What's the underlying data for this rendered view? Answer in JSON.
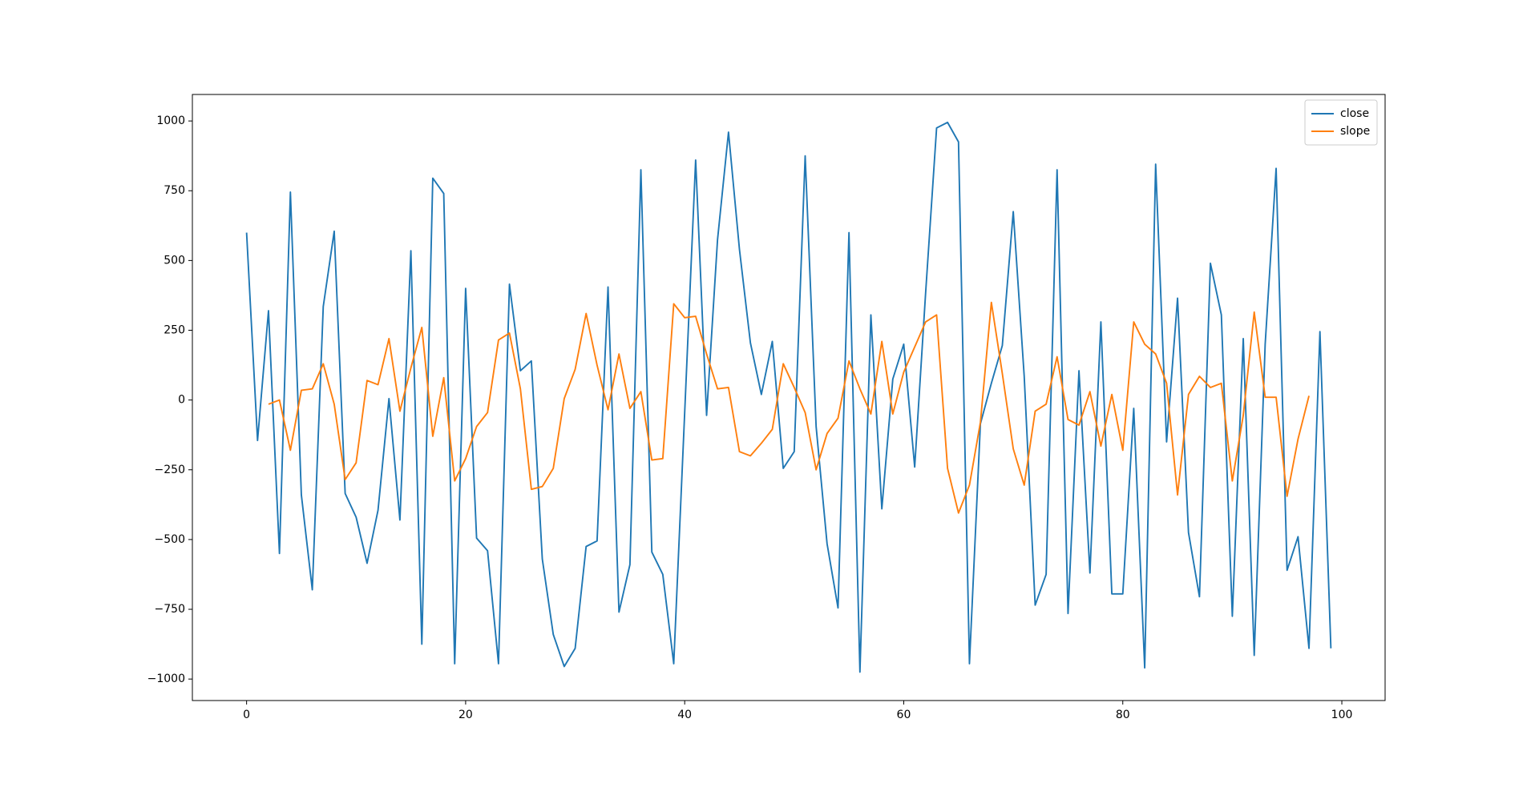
{
  "chart_data": {
    "type": "line",
    "x": [
      0,
      1,
      2,
      3,
      4,
      5,
      6,
      7,
      8,
      9,
      10,
      11,
      12,
      13,
      14,
      15,
      16,
      17,
      18,
      19,
      20,
      21,
      22,
      23,
      24,
      25,
      26,
      27,
      28,
      29,
      30,
      31,
      32,
      33,
      34,
      35,
      36,
      37,
      38,
      39,
      40,
      41,
      42,
      43,
      44,
      45,
      46,
      47,
      48,
      49,
      50,
      51,
      52,
      53,
      54,
      55,
      56,
      57,
      58,
      59,
      60,
      61,
      62,
      63,
      64,
      65,
      66,
      67,
      68,
      69,
      70,
      71,
      72,
      73,
      74,
      75,
      76,
      77,
      78,
      79,
      80,
      81,
      82,
      83,
      84,
      85,
      86,
      87,
      88,
      89,
      90,
      91,
      92,
      93,
      94,
      95,
      96,
      97,
      98,
      99
    ],
    "series": [
      {
        "name": "close",
        "color": "#1f77b4",
        "values": [
          600,
          -145,
          320,
          -550,
          745,
          -340,
          -680,
          335,
          605,
          -335,
          -420,
          -585,
          -395,
          5,
          -430,
          535,
          -875,
          795,
          740,
          -945,
          400,
          -495,
          -540,
          -945,
          415,
          105,
          140,
          -570,
          -840,
          -955,
          -890,
          -525,
          -505,
          405,
          -760,
          -590,
          825,
          -545,
          -625,
          -945,
          -45,
          860,
          -55,
          575,
          960,
          540,
          205,
          20,
          210,
          -245,
          -185,
          875,
          -95,
          -515,
          -745,
          600,
          -975,
          305,
          -390,
          75,
          200,
          -240,
          385,
          975,
          995,
          925,
          -945,
          -85,
          60,
          195,
          675,
          85,
          -735,
          -625,
          825,
          -765,
          105,
          -620,
          280,
          -695,
          -695,
          -30,
          -960,
          845,
          -150,
          365,
          -475,
          -705,
          490,
          305,
          -775,
          220,
          -915,
          200,
          830,
          -610,
          -490,
          -890,
          245,
          -890
        ]
      },
      {
        "name": "slope",
        "color": "#ff7f0e",
        "values": [
          null,
          null,
          -15,
          0,
          -180,
          35,
          40,
          130,
          -15,
          -285,
          -225,
          70,
          55,
          220,
          -40,
          115,
          260,
          -130,
          80,
          -290,
          -210,
          -95,
          -45,
          215,
          240,
          40,
          -320,
          -310,
          -245,
          5,
          110,
          310,
          125,
          -35,
          165,
          -30,
          30,
          -215,
          -210,
          345,
          295,
          300,
          165,
          40,
          45,
          -185,
          -200,
          -155,
          -105,
          130,
          45,
          -45,
          -250,
          -120,
          -65,
          140,
          40,
          -50,
          210,
          -50,
          100,
          190,
          280,
          305,
          -245,
          -405,
          -305,
          -80,
          350,
          95,
          -175,
          -305,
          -40,
          -15,
          155,
          -70,
          -90,
          30,
          -165,
          20,
          -180,
          280,
          200,
          165,
          60,
          -340,
          20,
          85,
          45,
          60,
          -290,
          -55,
          315,
          10,
          10,
          -345,
          -140,
          15,
          null,
          null
        ]
      }
    ],
    "xlim": [
      -4.95,
      103.95
    ],
    "xticks": [
      0,
      20,
      40,
      60,
      80,
      100
    ],
    "ylim": [
      -1077,
      1095
    ],
    "yticks": [
      {
        "value": -1000,
        "label": "−1000"
      },
      {
        "value": -750,
        "label": "−750"
      },
      {
        "value": -500,
        "label": "−500"
      },
      {
        "value": -250,
        "label": "−250"
      },
      0,
      250,
      500,
      750,
      1000
    ],
    "legend": "upper right"
  }
}
